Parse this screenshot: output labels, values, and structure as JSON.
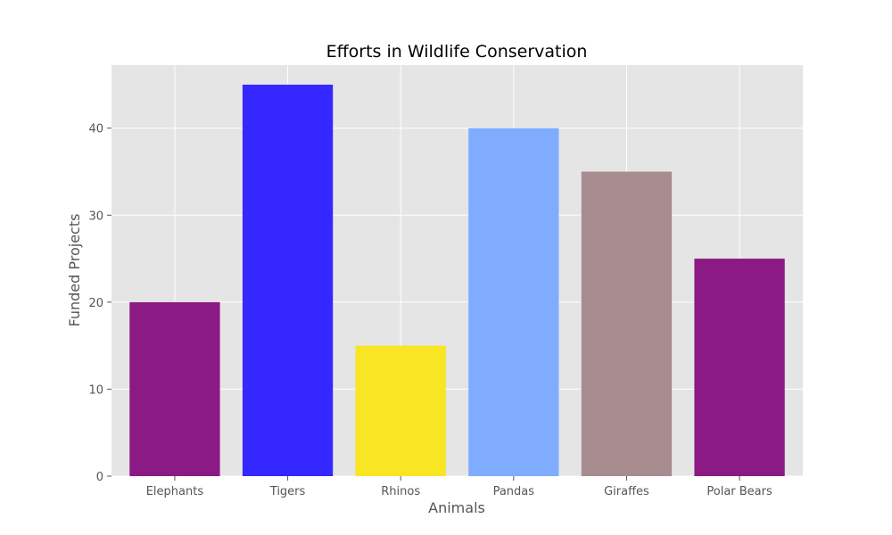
{
  "chart_data": {
    "type": "bar",
    "title": "Efforts in Wildlife Conservation",
    "xlabel": "Animals",
    "ylabel": "Funded Projects",
    "categories": [
      "Elephants",
      "Tigers",
      "Rhinos",
      "Pandas",
      "Giraffes",
      "Polar Bears"
    ],
    "values": [
      20,
      45,
      15,
      40,
      35,
      25
    ],
    "colors": [
      "#8b1a84",
      "#3427ff",
      "#f8e523",
      "#80acff",
      "#a78c90",
      "#8b1a84"
    ],
    "ylim": [
      0,
      47.25
    ],
    "yticks": [
      0,
      10,
      20,
      30,
      40
    ],
    "grid": true,
    "plot_background": "#e5e5e5"
  }
}
